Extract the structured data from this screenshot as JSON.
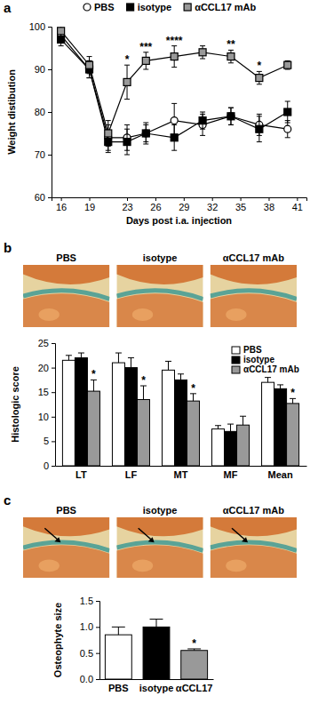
{
  "chart_data": [
    {
      "panel": "a",
      "type": "line",
      "x_label": "Days post i.a. injection",
      "y_label": "Weight distibution",
      "x": [
        16,
        19,
        21,
        23,
        25,
        28,
        31,
        34,
        37,
        40
      ],
      "xlim": [
        15,
        42
      ],
      "xticks": [
        16,
        19,
        23,
        26,
        29,
        32,
        35,
        38,
        41
      ],
      "ylim": [
        60,
        100
      ],
      "yticks": [
        60,
        70,
        80,
        90,
        100
      ],
      "grid": false,
      "legend": "top",
      "series": [
        {
          "name": "PBS",
          "color": "#ffffff",
          "marker": "circle",
          "values": [
            98,
            90,
            74,
            74,
            75,
            78,
            77,
            79,
            77,
            76
          ],
          "errors": [
            1.5,
            2,
            3,
            3,
            2,
            4,
            2.5,
            2,
            2.5,
            2
          ]
        },
        {
          "name": "isotype",
          "color": "#000000",
          "marker": "square",
          "values": [
            97,
            90,
            73,
            73,
            75,
            74,
            78,
            79,
            76,
            80
          ],
          "errors": [
            1.5,
            2,
            2.5,
            3,
            2.5,
            3,
            2,
            2,
            3,
            2.5
          ]
        },
        {
          "name": "αCCL17 mAb",
          "color": "#999999",
          "marker": "square",
          "values": [
            99,
            91,
            75,
            87,
            92,
            93,
            94,
            93,
            88,
            91
          ],
          "errors": [
            1.5,
            2,
            3,
            4,
            2,
            2.5,
            1.5,
            1.5,
            1.5,
            1
          ],
          "annotations": [
            null,
            null,
            null,
            "*",
            "***",
            "****",
            null,
            "**",
            "*",
            null
          ]
        }
      ]
    },
    {
      "panel": "b",
      "type": "bar",
      "image_labels": [
        "PBS",
        "isotype",
        "αCCL17 mAb"
      ],
      "y_label": "Histologic score",
      "categories": [
        "LT",
        "LF",
        "MT",
        "MF",
        "Mean"
      ],
      "ylim": [
        0,
        25
      ],
      "yticks": [
        0,
        5,
        10,
        15,
        20,
        25
      ],
      "grid": false,
      "legend": "upper right",
      "series": [
        {
          "name": "PBS",
          "color": "#ffffff",
          "values": [
            21.5,
            21,
            19.5,
            7.5,
            17
          ],
          "errors": [
            1,
            2,
            1.8,
            0.7,
            1
          ]
        },
        {
          "name": "isotype",
          "color": "#000000",
          "values": [
            22,
            20,
            17.5,
            7,
            15.7
          ],
          "errors": [
            1,
            2,
            1.2,
            1.5,
            0.8
          ]
        },
        {
          "name": "αCCL17 mAb",
          "color": "#999999",
          "values": [
            15.2,
            13.5,
            13.2,
            8.3,
            12.7
          ],
          "errors": [
            2.3,
            2.8,
            1.5,
            1.8,
            1
          ],
          "annotations": [
            "*",
            "*",
            "*",
            null,
            "*"
          ]
        }
      ]
    },
    {
      "panel": "c",
      "type": "bar",
      "image_labels": [
        "PBS",
        "isotype",
        "αCCL17 mAb"
      ],
      "y_label": "Osteophyte size",
      "categories": [
        "PBS",
        "isotype",
        "αCCL17"
      ],
      "ylim": [
        0,
        1.5
      ],
      "yticks": [
        {
          "value": 0,
          "label": "0.0"
        },
        0.5,
        {
          "value": 1,
          "label": "1.0"
        },
        1.5
      ],
      "grid": false,
      "values": [
        0.85,
        1.0,
        0.55
      ],
      "colors": [
        "#ffffff",
        "#000000",
        "#999999"
      ],
      "errors": [
        0.15,
        0.15,
        0.03
      ],
      "annotations": [
        null,
        null,
        "*"
      ]
    }
  ]
}
